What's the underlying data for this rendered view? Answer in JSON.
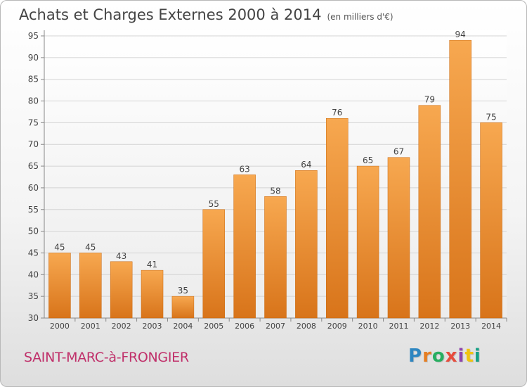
{
  "title": "Achats et Charges Externes 2000 à 2014",
  "unit": "(en milliers d'€)",
  "commune": "SAINT-MARC-à-FRONGIER",
  "logo": {
    "text": "Proxiti",
    "colors": [
      "#2e86c1",
      "#e67e22",
      "#27ae60",
      "#e74c3c",
      "#8e44ad",
      "#f1c40f",
      "#16a085"
    ]
  },
  "chart_data": {
    "type": "bar",
    "categories": [
      "2000",
      "2001",
      "2002",
      "2003",
      "2004",
      "2005",
      "2006",
      "2007",
      "2008",
      "2009",
      "2010",
      "2011",
      "2012",
      "2013",
      "2014"
    ],
    "values": [
      45,
      45,
      43,
      41,
      35,
      55,
      63,
      58,
      64,
      76,
      65,
      67,
      79,
      94,
      75
    ],
    "ylim": [
      30,
      95
    ],
    "yticks": [
      30,
      35,
      40,
      45,
      50,
      55,
      60,
      65,
      70,
      75,
      80,
      85,
      90,
      95
    ],
    "grid": true,
    "bar_color": "#f0892e"
  }
}
